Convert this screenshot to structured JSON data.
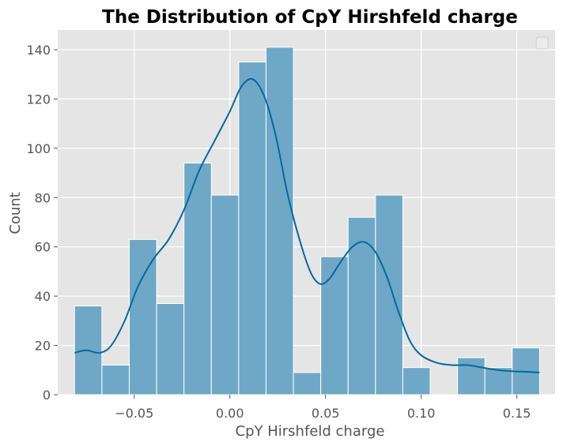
{
  "chart_data": {
    "type": "histogram",
    "title": "The Distribution of CpY Hirshfeld charge",
    "xlabel": "CpY Hirshfeld charge",
    "ylabel": "Count",
    "xlim": [
      -0.09,
      0.17
    ],
    "ylim": [
      0,
      148
    ],
    "xticks": [
      -0.05,
      0.0,
      0.05,
      0.1,
      0.15
    ],
    "xtick_labels": [
      "−0.05",
      "0.00",
      "0.05",
      "0.10",
      "0.15"
    ],
    "yticks": [
      0,
      20,
      40,
      60,
      80,
      100,
      120,
      140
    ],
    "ytick_labels": [
      "0",
      "20",
      "40",
      "60",
      "80",
      "100",
      "120",
      "140"
    ],
    "bin_edges": [
      -0.0812,
      -0.0669,
      -0.0526,
      -0.0383,
      -0.024,
      -0.0097,
      0.0046,
      0.0189,
      0.0332,
      0.0475,
      0.0618,
      0.0761,
      0.0904,
      0.1047,
      0.119,
      0.1333,
      0.1476,
      0.1619
    ],
    "counts": [
      36,
      12,
      63,
      37,
      94,
      81,
      135,
      141,
      9,
      56,
      72,
      81,
      11,
      0,
      15,
      11,
      19
    ],
    "kde": {
      "x": [
        -0.0812,
        -0.075,
        -0.068,
        -0.062,
        -0.055,
        -0.048,
        -0.04,
        -0.032,
        -0.024,
        -0.016,
        -0.008,
        0.0,
        0.006,
        0.012,
        0.018,
        0.024,
        0.03,
        0.036,
        0.042,
        0.047,
        0.052,
        0.058,
        0.064,
        0.07,
        0.076,
        0.082,
        0.088,
        0.094,
        0.1,
        0.108,
        0.116,
        0.124,
        0.132,
        0.14,
        0.148,
        0.155,
        0.1619
      ],
      "y": [
        17,
        18,
        17,
        20,
        30,
        44,
        55,
        63,
        75,
        91,
        103,
        115,
        125,
        128,
        121,
        105,
        82,
        64,
        50,
        45,
        47,
        54,
        60,
        62,
        58,
        48,
        34,
        22,
        16,
        13,
        12,
        12,
        11,
        10,
        9.5,
        9.3,
        9
      ]
    },
    "grid": true,
    "legend": {
      "placement": "top-right",
      "entries": []
    },
    "colors": {
      "background": "#e5e5e5",
      "bar_fill": "#6fa8c6",
      "kde_line": "#0369a1",
      "grid": "#ffffff"
    }
  }
}
